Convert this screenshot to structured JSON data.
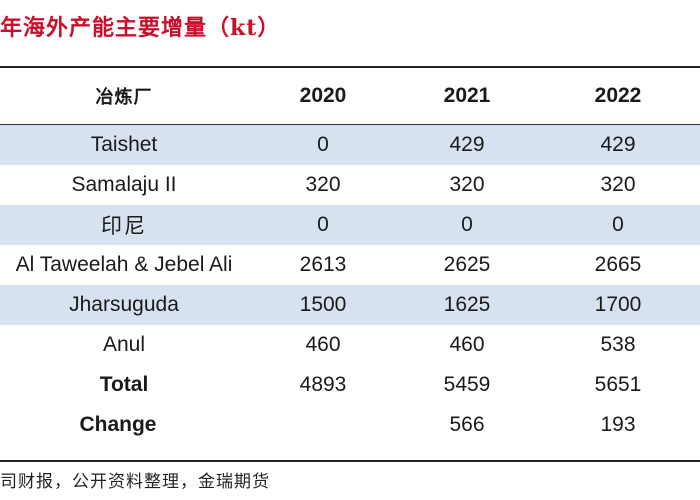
{
  "title": "年海外产能主要增量（kt）",
  "table": {
    "headers": [
      "冶炼厂",
      "2020",
      "2021",
      "2022"
    ],
    "rows": [
      {
        "label": "Taishet",
        "values": [
          "0",
          "429",
          "429"
        ],
        "shaded": true
      },
      {
        "label": "Samalaju II",
        "values": [
          "320",
          "320",
          "320"
        ],
        "shaded": false
      },
      {
        "label": "印尼",
        "values": [
          "0",
          "0",
          "0"
        ],
        "shaded": true
      },
      {
        "label": "Al Taweelah & Jebel Ali",
        "values": [
          "2613",
          "2625",
          "2665"
        ],
        "shaded": false
      },
      {
        "label": "Jharsuguda",
        "values": [
          "1500",
          "1625",
          "1700"
        ],
        "shaded": true
      },
      {
        "label": "Anul",
        "values": [
          "460",
          "460",
          "538"
        ],
        "shaded": false
      },
      {
        "label": "Total",
        "values": [
          "4893",
          "5459",
          "5651"
        ],
        "shaded": false
      },
      {
        "label": "Change",
        "values": [
          "",
          "566",
          "193"
        ],
        "shaded": false
      }
    ]
  },
  "source": "司财报，公开资料整理，金瑞期货"
}
